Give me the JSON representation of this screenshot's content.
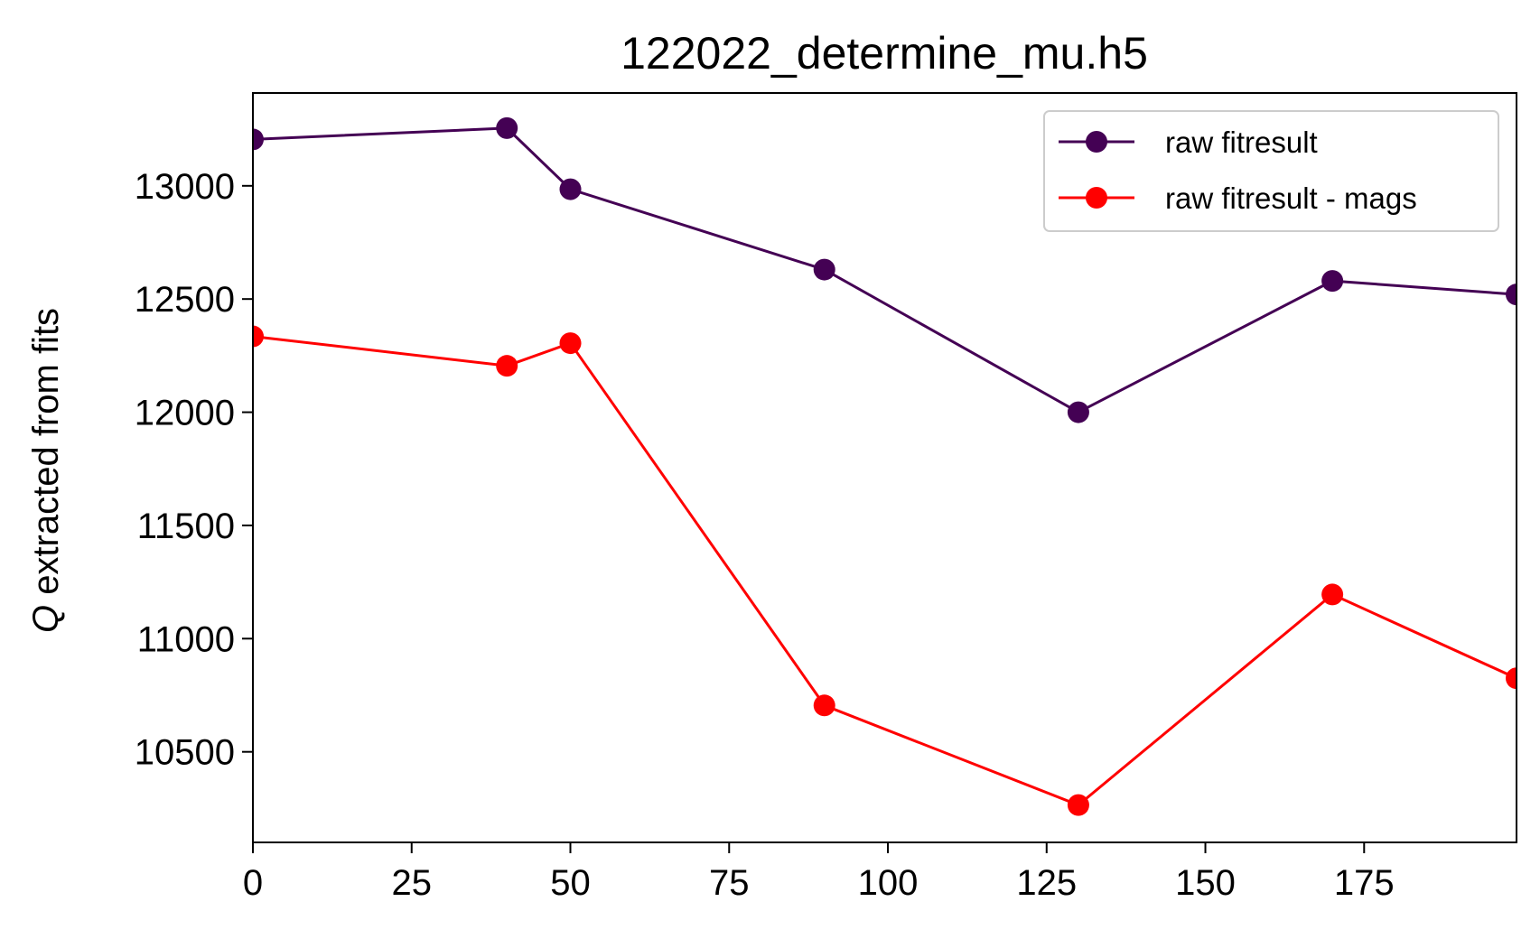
{
  "chart_data": {
    "type": "line",
    "title": "122022_determine_mu.h5",
    "xlabel": "",
    "ylabel": {
      "symbol": "Q",
      "text": " extracted from fits"
    },
    "xlim": [
      0,
      199
    ],
    "ylim": [
      10100,
      13410
    ],
    "x_ticks": [
      0,
      25,
      50,
      75,
      100,
      125,
      150,
      175
    ],
    "x_tick_labels": [
      "0",
      "25",
      "50",
      "75",
      "100",
      "125",
      "150",
      "175"
    ],
    "y_ticks": [
      10500,
      11000,
      11500,
      12000,
      12500,
      13000
    ],
    "y_tick_labels": [
      "10500",
      "11000",
      "11500",
      "12000",
      "12500",
      "13000"
    ],
    "grid": false,
    "legend_position": "top-right",
    "x": [
      0,
      40,
      50,
      90,
      130,
      170,
      199
    ],
    "series": [
      {
        "name": "raw fitresult",
        "color": "#440154",
        "marker": "circle",
        "values": [
          13205,
          13255,
          12985,
          12630,
          12000,
          12580,
          12520
        ]
      },
      {
        "name": "raw fitresult - mags",
        "color": "#ff0000",
        "marker": "circle",
        "values": [
          12335,
          12205,
          12305,
          10705,
          10265,
          11195,
          10825
        ]
      }
    ]
  }
}
